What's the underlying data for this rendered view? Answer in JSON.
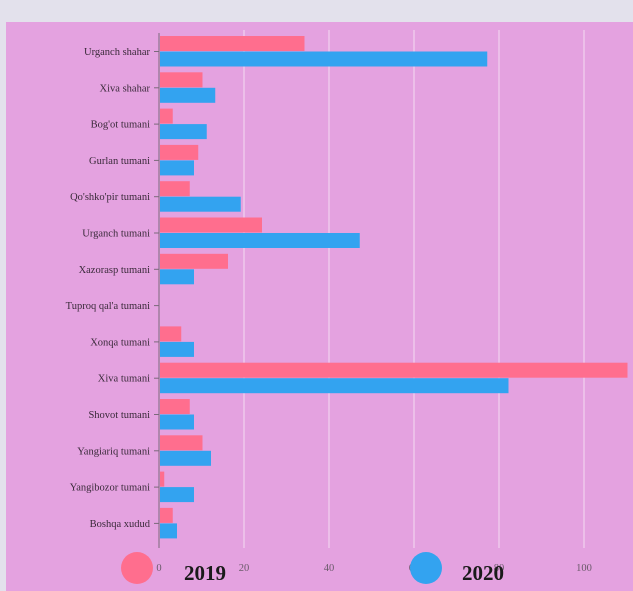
{
  "chart_data": {
    "type": "bar",
    "orientation": "horizontal",
    "categories": [
      "Urganch shahar",
      "Xiva shahar",
      "Bog'ot tumani",
      "Gurlan tumani",
      "Qo'shko'pir tumani",
      "Urganch tumani",
      "Xazorasp tumani",
      "Tuproq qal'a tumani",
      "Xonqa tumani",
      "Xiva tumani",
      "Shovot tumani",
      "Yangiariq tumani",
      "Yangibozor tumani",
      "Boshqa xudud"
    ],
    "series": [
      {
        "name": "2019",
        "color": "#ff6e8e",
        "values": [
          34,
          10,
          3,
          9,
          7,
          24,
          16,
          0,
          5,
          110,
          7,
          10,
          1,
          3
        ]
      },
      {
        "name": "2020",
        "color": "#33a3f0",
        "values": [
          77,
          13,
          11,
          8,
          19,
          47,
          8,
          0,
          8,
          82,
          8,
          12,
          8,
          4
        ]
      }
    ],
    "x_ticks": [
      "0",
      "20",
      "40",
      "60",
      "80",
      "100"
    ],
    "xlim": [
      0,
      110
    ],
    "grid": true,
    "legend_position": "bottom",
    "colors": {
      "plot_background": "#e4a2e0",
      "outer_background": "#e3e1ec",
      "grid": "#f3dcf2"
    }
  }
}
